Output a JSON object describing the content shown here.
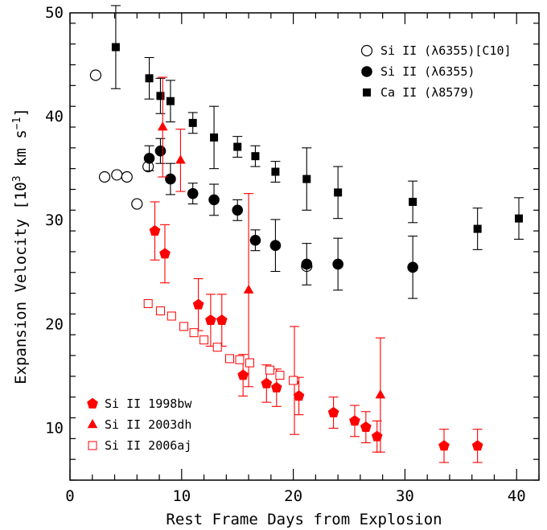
{
  "chart_data": {
    "type": "scatter",
    "title": "",
    "xlabel": "Rest Frame Days from Explosion",
    "ylabel": "Expansion Velocity [10",
    "ylabel_sup1": "3",
    "ylabel_mid": " km s",
    "ylabel_sup2": "−1",
    "ylabel_end": "]",
    "xlim": [
      0,
      42
    ],
    "ylim": [
      5,
      50
    ],
    "x_ticks": [
      0,
      10,
      20,
      30,
      40
    ],
    "y_ticks": [
      10,
      20,
      30,
      40,
      50
    ],
    "legend_top_right": true,
    "legend_bottom_left": true,
    "series": [
      {
        "name": "Si II (λ6355)[C10]",
        "marker": "open-circle",
        "color": "#000000",
        "points": [
          {
            "x": 2.3,
            "y": 44.0
          },
          {
            "x": 3.1,
            "y": 34.2
          },
          {
            "x": 4.2,
            "y": 34.4
          },
          {
            "x": 5.1,
            "y": 34.2
          },
          {
            "x": 6.0,
            "y": 31.6
          },
          {
            "x": 7.0,
            "y": 35.2
          },
          {
            "x": 21.2,
            "y": 25.6
          }
        ]
      },
      {
        "name": "Si II (λ6355)",
        "marker": "filled-circle",
        "color": "#000000",
        "points": [
          {
            "x": 7.1,
            "y": 36.0,
            "err": 1.2
          },
          {
            "x": 8.1,
            "y": 36.7,
            "err": 1.2
          },
          {
            "x": 9.0,
            "y": 34.0,
            "err": 1.5
          },
          {
            "x": 11.0,
            "y": 32.6,
            "err": 1.0
          },
          {
            "x": 12.9,
            "y": 32.0,
            "err": 1.5
          },
          {
            "x": 15.0,
            "y": 31.0,
            "err": 1.0
          },
          {
            "x": 16.6,
            "y": 28.1,
            "err": 1.0
          },
          {
            "x": 18.4,
            "y": 27.6,
            "err": 2.5
          },
          {
            "x": 21.2,
            "y": 25.8,
            "err": 2.0
          },
          {
            "x": 24.0,
            "y": 25.8,
            "err": 2.5
          },
          {
            "x": 30.7,
            "y": 25.5,
            "err": 3.0
          }
        ]
      },
      {
        "name": "Ca II (λ8579)",
        "marker": "filled-square",
        "color": "#000000",
        "points": [
          {
            "x": 4.1,
            "y": 46.7,
            "err": 4.0
          },
          {
            "x": 7.1,
            "y": 43.7,
            "err": 2.0
          },
          {
            "x": 8.1,
            "y": 42.0,
            "err": 1.7
          },
          {
            "x": 9.0,
            "y": 41.5,
            "err": 2.0
          },
          {
            "x": 11.0,
            "y": 39.4,
            "err": 1.0
          },
          {
            "x": 12.9,
            "y": 38.0,
            "err": 3.0
          },
          {
            "x": 15.0,
            "y": 37.1,
            "err": 1.0
          },
          {
            "x": 16.6,
            "y": 36.2,
            "err": 1.0
          },
          {
            "x": 18.4,
            "y": 34.7,
            "err": 1.0
          },
          {
            "x": 21.2,
            "y": 34.0,
            "err": 3.0
          },
          {
            "x": 24.0,
            "y": 32.7,
            "err": 2.5
          },
          {
            "x": 30.7,
            "y": 31.8,
            "err": 2.0
          },
          {
            "x": 36.5,
            "y": 29.2,
            "err": 2.0
          },
          {
            "x": 40.2,
            "y": 30.2,
            "err": 2.0
          }
        ]
      },
      {
        "name": "Si II 1998bw",
        "marker": "filled-pentagon",
        "color": "#ff0000",
        "points": [
          {
            "x": 7.6,
            "y": 29.0,
            "err": 2.8
          },
          {
            "x": 8.5,
            "y": 26.8,
            "err": 2.8
          },
          {
            "x": 11.5,
            "y": 21.9,
            "err": 2.5
          },
          {
            "x": 12.6,
            "y": 20.4,
            "err": 2.5
          },
          {
            "x": 13.6,
            "y": 20.4,
            "err": 2.5
          },
          {
            "x": 15.5,
            "y": 15.1,
            "err": 2.0
          },
          {
            "x": 17.6,
            "y": 14.3,
            "err": 1.8
          },
          {
            "x": 18.5,
            "y": 13.9,
            "err": 1.8
          },
          {
            "x": 20.5,
            "y": 13.1,
            "err": 1.8
          },
          {
            "x": 23.6,
            "y": 11.5,
            "err": 1.5
          },
          {
            "x": 25.5,
            "y": 10.7,
            "err": 1.5
          },
          {
            "x": 26.5,
            "y": 10.1,
            "err": 1.5
          },
          {
            "x": 27.5,
            "y": 9.2,
            "err": 1.5
          },
          {
            "x": 33.5,
            "y": 8.3,
            "err": 1.6
          },
          {
            "x": 36.5,
            "y": 8.3,
            "err": 1.6
          }
        ]
      },
      {
        "name": "Si II 2003dh",
        "marker": "filled-triangle",
        "color": "#ff0000",
        "points": [
          {
            "x": 8.3,
            "y": 39.0,
            "err": 4.8
          },
          {
            "x": 9.9,
            "y": 35.8,
            "err": 3.0
          },
          {
            "x": 16.0,
            "y": 23.3,
            "err": 9.3
          },
          {
            "x": 20.1,
            "y": 14.6,
            "err": 5.2
          },
          {
            "x": 27.8,
            "y": 13.2,
            "err": 5.5
          }
        ]
      },
      {
        "name": "Si II 2006aj",
        "marker": "open-square",
        "color": "#ff0000",
        "points": [
          {
            "x": 7.0,
            "y": 22.0
          },
          {
            "x": 8.1,
            "y": 21.3
          },
          {
            "x": 9.1,
            "y": 20.8
          },
          {
            "x": 10.2,
            "y": 19.8
          },
          {
            "x": 11.1,
            "y": 19.2
          },
          {
            "x": 12.0,
            "y": 18.5
          },
          {
            "x": 13.2,
            "y": 17.8
          },
          {
            "x": 14.3,
            "y": 16.7
          },
          {
            "x": 15.2,
            "y": 16.6
          },
          {
            "x": 16.1,
            "y": 16.3
          },
          {
            "x": 17.9,
            "y": 15.6
          },
          {
            "x": 18.8,
            "y": 15.1
          },
          {
            "x": 20.0,
            "y": 14.6
          }
        ]
      }
    ]
  }
}
